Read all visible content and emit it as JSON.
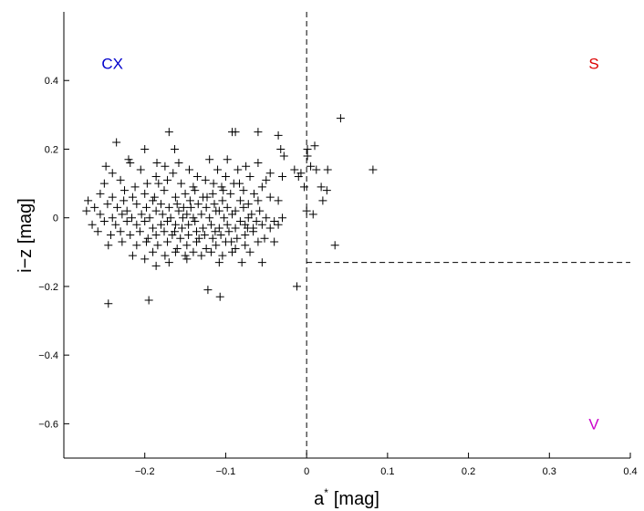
{
  "chart_data": {
    "type": "scatter",
    "marker": "+",
    "xlabel": "a",
    "xlabel_superscript": "*",
    "xlabel_unit": "[mag]",
    "ylabel": "i−z [mag]",
    "xlim": [
      -0.3,
      0.4
    ],
    "ylim": [
      -0.7,
      0.6
    ],
    "xticks": [
      -0.2,
      -0.1,
      0,
      0.1,
      0.2,
      0.3,
      0.4
    ],
    "xtick_labels": [
      "−0.2",
      "−0.1",
      "0",
      "0.1",
      "0.2",
      "0.3",
      "0.4"
    ],
    "yticks": [
      -0.6,
      -0.4,
      -0.2,
      0,
      0.2,
      0.4
    ],
    "ytick_labels": [
      "−0.6",
      "−0.4",
      "−0.2",
      "0",
      "0.2",
      "0.4"
    ],
    "grid": false,
    "dividers": [
      {
        "style": "dashed",
        "x": 0,
        "y_range": [
          -0.7,
          0.6
        ]
      },
      {
        "style": "dashed",
        "y": -0.13,
        "x_range": [
          0,
          0.4
        ]
      }
    ],
    "annotations": [
      {
        "text": "CX",
        "x": -0.24,
        "y": 0.45,
        "color": "#0000cc"
      },
      {
        "text": "S",
        "x": 0.355,
        "y": 0.45,
        "color": "#dd0000"
      },
      {
        "text": "V",
        "x": 0.355,
        "y": -0.6,
        "color": "#cc00cc"
      }
    ],
    "points": [
      [
        -0.245,
        -0.25
      ],
      [
        -0.195,
        -0.24
      ],
      [
        -0.122,
        -0.21
      ],
      [
        -0.107,
        -0.23
      ],
      [
        -0.012,
        -0.2
      ],
      [
        -0.055,
        -0.13
      ],
      [
        0.035,
        -0.08
      ],
      [
        0.042,
        0.29
      ],
      [
        0.082,
        0.14
      ],
      [
        -0.092,
        0.25
      ],
      [
        -0.088,
        0.25
      ],
      [
        -0.06,
        0.25
      ],
      [
        -0.17,
        0.25
      ],
      [
        -0.235,
        0.22
      ],
      [
        -0.2,
        0.2
      ],
      [
        -0.163,
        0.2
      ],
      [
        -0.035,
        0.24
      ],
      [
        -0.032,
        0.2
      ],
      [
        -0.028,
        0.18
      ],
      [
        0.001,
        0.2
      ],
      [
        0.01,
        0.21
      ],
      [
        0.001,
        0.18
      ],
      [
        -0.22,
        0.17
      ],
      [
        -0.218,
        0.16
      ],
      [
        -0.185,
        0.16
      ],
      [
        -0.175,
        0.15
      ],
      [
        -0.158,
        0.16
      ],
      [
        -0.12,
        0.17
      ],
      [
        -0.098,
        0.17
      ],
      [
        -0.075,
        0.15
      ],
      [
        -0.06,
        0.16
      ],
      [
        -0.045,
        0.13
      ],
      [
        -0.015,
        0.14
      ],
      [
        0.005,
        0.15
      ],
      [
        0.012,
        0.14
      ],
      [
        0.026,
        0.14
      ],
      [
        -0.01,
        0.12
      ],
      [
        -0.007,
        0.13
      ],
      [
        -0.03,
        0.12
      ],
      [
        -0.248,
        0.15
      ],
      [
        -0.24,
        0.13
      ],
      [
        -0.205,
        0.14
      ],
      [
        -0.145,
        0.14
      ],
      [
        -0.11,
        0.14
      ],
      [
        -0.085,
        0.14
      ],
      [
        -0.07,
        0.12
      ],
      [
        -0.05,
        0.11
      ],
      [
        -0.23,
        0.11
      ],
      [
        -0.186,
        0.12
      ],
      [
        -0.165,
        0.13
      ],
      [
        -0.135,
        0.12
      ],
      [
        -0.1,
        0.12
      ],
      [
        0.018,
        0.09
      ],
      [
        0.025,
        0.08
      ],
      [
        0.02,
        0.05
      ],
      [
        -0.003,
        0.09
      ],
      [
        -0.035,
        0.05
      ],
      [
        -0.045,
        0.06
      ],
      [
        -0.055,
        0.09
      ],
      [
        -0.25,
        0.1
      ],
      [
        -0.225,
        0.08
      ],
      [
        -0.212,
        0.09
      ],
      [
        -0.197,
        0.1
      ],
      [
        -0.183,
        0.1
      ],
      [
        -0.172,
        0.11
      ],
      [
        -0.155,
        0.1
      ],
      [
        -0.14,
        0.09
      ],
      [
        -0.125,
        0.11
      ],
      [
        -0.115,
        0.1
      ],
      [
        -0.105,
        0.09
      ],
      [
        -0.09,
        0.1
      ],
      [
        -0.078,
        0.08
      ],
      [
        -0.065,
        0.07
      ],
      [
        -0.255,
        0.07
      ],
      [
        -0.24,
        0.06
      ],
      [
        -0.226,
        0.05
      ],
      [
        -0.215,
        0.06
      ],
      [
        -0.2,
        0.07
      ],
      [
        -0.188,
        0.06
      ],
      [
        -0.176,
        0.08
      ],
      [
        -0.162,
        0.06
      ],
      [
        -0.15,
        0.07
      ],
      [
        -0.138,
        0.08
      ],
      [
        -0.128,
        0.06
      ],
      [
        -0.116,
        0.07
      ],
      [
        -0.104,
        0.05
      ],
      [
        -0.094,
        0.07
      ],
      [
        -0.082,
        0.05
      ],
      [
        -0.072,
        0.04
      ],
      [
        -0.06,
        0.05
      ],
      [
        -0.27,
        0.05
      ],
      [
        -0.262,
        0.03
      ],
      [
        -0.246,
        0.04
      ],
      [
        -0.234,
        0.03
      ],
      [
        -0.222,
        0.02
      ],
      [
        -0.21,
        0.04
      ],
      [
        -0.198,
        0.03
      ],
      [
        -0.19,
        0.05
      ],
      [
        -0.18,
        0.04
      ],
      [
        -0.17,
        0.03
      ],
      [
        -0.16,
        0.04
      ],
      [
        -0.152,
        0.03
      ],
      [
        -0.144,
        0.05
      ],
      [
        -0.134,
        0.04
      ],
      [
        -0.124,
        0.03
      ],
      [
        -0.114,
        0.04
      ],
      [
        -0.108,
        0.02
      ],
      [
        -0.098,
        0.03
      ],
      [
        -0.088,
        0.02
      ],
      [
        -0.078,
        0.03
      ],
      [
        -0.068,
        0.01
      ],
      [
        -0.058,
        0.02
      ],
      [
        -0.03,
        0.0
      ],
      [
        -0.272,
        0.02
      ],
      [
        -0.255,
        0.01
      ],
      [
        -0.24,
        0.0
      ],
      [
        -0.228,
        0.01
      ],
      [
        -0.216,
        0.0
      ],
      [
        -0.204,
        0.01
      ],
      [
        -0.194,
        -0.0
      ],
      [
        -0.186,
        0.02
      ],
      [
        -0.178,
        0.01
      ],
      [
        -0.168,
        0.0
      ],
      [
        -0.158,
        0.02
      ],
      [
        -0.148,
        0.01
      ],
      [
        -0.14,
        -0.0
      ],
      [
        -0.13,
        0.01
      ],
      [
        -0.12,
        0.0
      ],
      [
        -0.112,
        0.02
      ],
      [
        -0.102,
        -0.0
      ],
      [
        -0.092,
        0.01
      ],
      [
        -0.082,
        -0.01
      ],
      [
        -0.072,
        0.0
      ],
      [
        -0.062,
        -0.01
      ],
      [
        -0.05,
        0.0
      ],
      [
        -0.04,
        -0.01
      ],
      [
        0.0,
        0.02
      ],
      [
        0.008,
        0.01
      ],
      [
        -0.265,
        -0.02
      ],
      [
        -0.25,
        -0.01
      ],
      [
        -0.236,
        -0.02
      ],
      [
        -0.222,
        -0.01
      ],
      [
        -0.21,
        -0.02
      ],
      [
        -0.2,
        -0.01
      ],
      [
        -0.19,
        -0.03
      ],
      [
        -0.18,
        -0.02
      ],
      [
        -0.172,
        -0.01
      ],
      [
        -0.162,
        -0.02
      ],
      [
        -0.154,
        -0.03
      ],
      [
        -0.146,
        -0.02
      ],
      [
        -0.138,
        -0.01
      ],
      [
        -0.128,
        -0.03
      ],
      [
        -0.118,
        -0.02
      ],
      [
        -0.108,
        -0.03
      ],
      [
        -0.098,
        -0.02
      ],
      [
        -0.088,
        -0.03
      ],
      [
        -0.076,
        -0.02
      ],
      [
        -0.066,
        -0.03
      ],
      [
        -0.055,
        -0.02
      ],
      [
        -0.045,
        -0.03
      ],
      [
        -0.035,
        -0.02
      ],
      [
        -0.258,
        -0.04
      ],
      [
        -0.242,
        -0.05
      ],
      [
        -0.23,
        -0.04
      ],
      [
        -0.218,
        -0.05
      ],
      [
        -0.206,
        -0.04
      ],
      [
        -0.196,
        -0.06
      ],
      [
        -0.186,
        -0.05
      ],
      [
        -0.176,
        -0.04
      ],
      [
        -0.166,
        -0.05
      ],
      [
        -0.156,
        -0.06
      ],
      [
        -0.146,
        -0.05
      ],
      [
        -0.136,
        -0.04
      ],
      [
        -0.126,
        -0.05
      ],
      [
        -0.116,
        -0.06
      ],
      [
        -0.106,
        -0.05
      ],
      [
        -0.096,
        -0.04
      ],
      [
        -0.086,
        -0.06
      ],
      [
        -0.076,
        -0.05
      ],
      [
        -0.066,
        -0.04
      ],
      [
        -0.052,
        -0.06
      ],
      [
        -0.04,
        -0.07
      ],
      [
        -0.228,
        -0.07
      ],
      [
        -0.21,
        -0.08
      ],
      [
        -0.198,
        -0.07
      ],
      [
        -0.184,
        -0.08
      ],
      [
        -0.172,
        -0.07
      ],
      [
        -0.16,
        -0.09
      ],
      [
        -0.148,
        -0.08
      ],
      [
        -0.136,
        -0.07
      ],
      [
        -0.124,
        -0.09
      ],
      [
        -0.112,
        -0.08
      ],
      [
        -0.1,
        -0.07
      ],
      [
        -0.088,
        -0.09
      ],
      [
        -0.076,
        -0.08
      ],
      [
        -0.06,
        -0.07
      ],
      [
        -0.245,
        -0.08
      ],
      [
        -0.19,
        -0.1
      ],
      [
        -0.175,
        -0.11
      ],
      [
        -0.162,
        -0.1
      ],
      [
        -0.15,
        -0.11
      ],
      [
        -0.14,
        -0.1
      ],
      [
        -0.13,
        -0.11
      ],
      [
        -0.118,
        -0.1
      ],
      [
        -0.104,
        -0.11
      ],
      [
        -0.092,
        -0.1
      ],
      [
        -0.07,
        -0.1
      ],
      [
        -0.186,
        -0.14
      ],
      [
        -0.17,
        -0.13
      ],
      [
        -0.148,
        -0.12
      ],
      [
        -0.108,
        -0.13
      ],
      [
        -0.08,
        -0.13
      ],
      [
        -0.2,
        -0.12
      ],
      [
        -0.215,
        -0.11
      ],
      [
        -0.163,
        -0.04
      ],
      [
        -0.153,
        0.0
      ],
      [
        -0.143,
        0.03
      ],
      [
        -0.133,
        -0.06
      ],
      [
        -0.123,
        0.06
      ],
      [
        -0.113,
        -0.04
      ],
      [
        -0.103,
        0.08
      ],
      [
        -0.093,
        -0.07
      ],
      [
        -0.083,
        0.1
      ],
      [
        -0.073,
        -0.03
      ]
    ]
  }
}
